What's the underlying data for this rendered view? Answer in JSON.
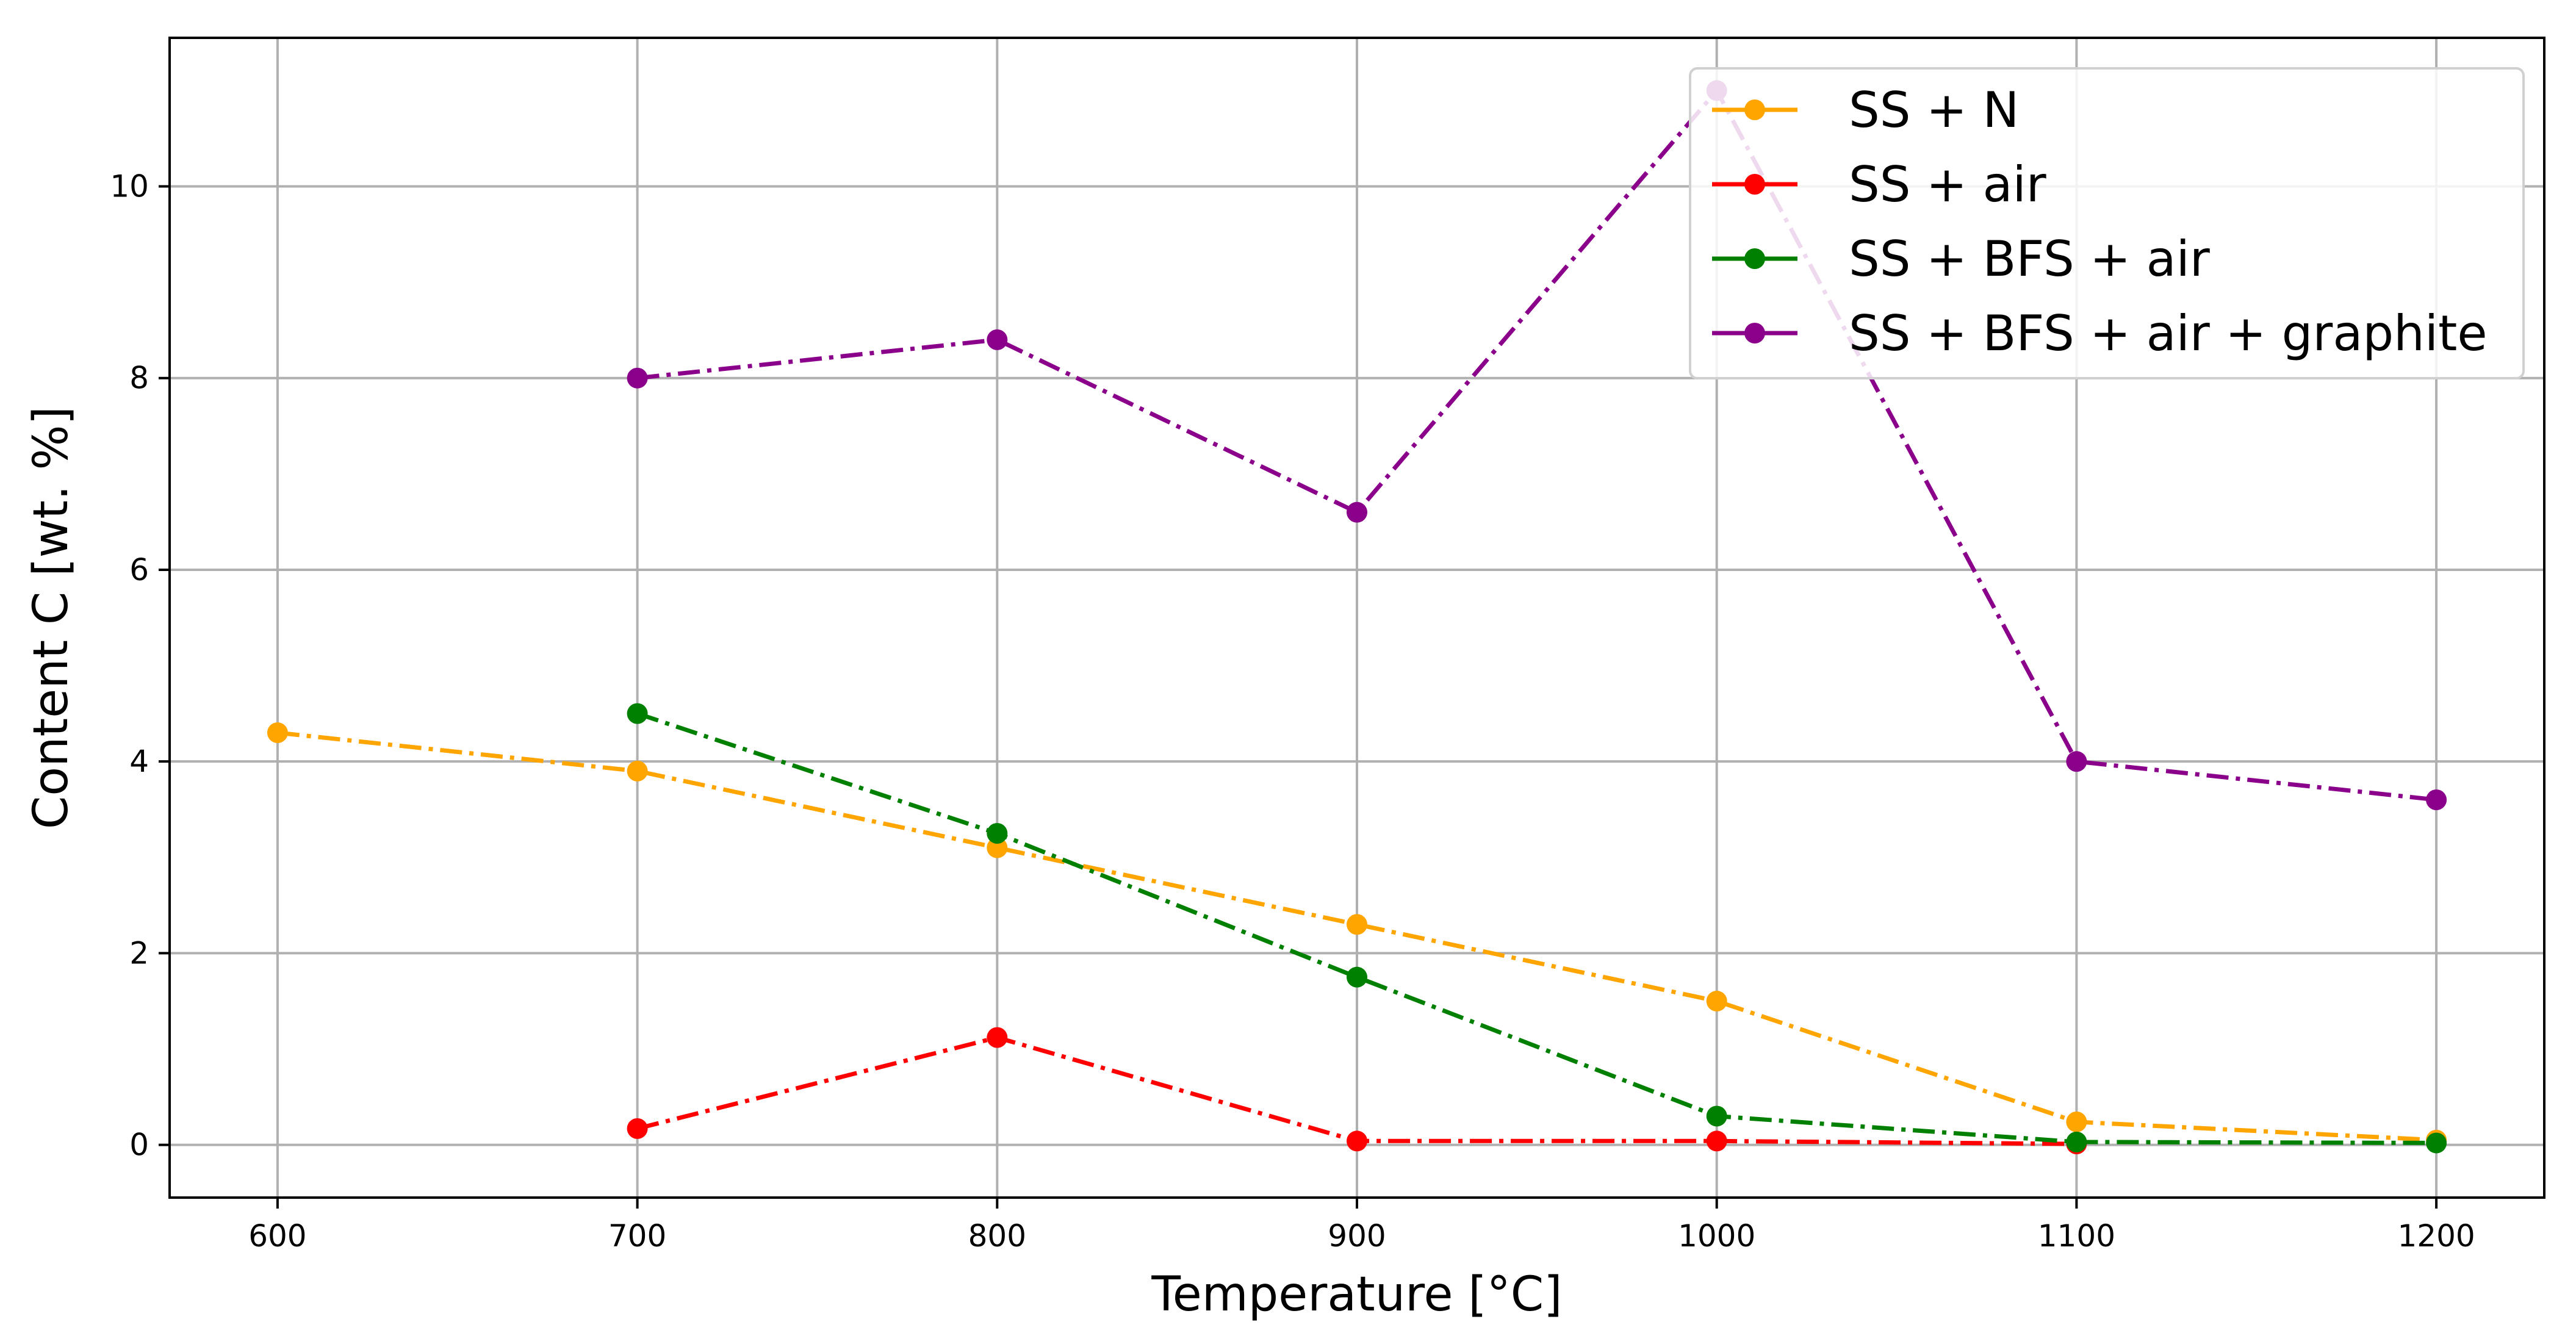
{
  "chart_data": {
    "type": "line",
    "title": "",
    "xlabel": "Temperature [°C]",
    "ylabel": "Content C [wt. %]",
    "xlim": [
      570,
      1230
    ],
    "ylim": [
      -0.55,
      11.55
    ],
    "xticks": [
      600,
      700,
      800,
      900,
      1000,
      1100,
      1200
    ],
    "yticks": [
      0,
      2,
      4,
      6,
      8,
      10
    ],
    "xtick_labels": [
      "600",
      "700",
      "800",
      "900",
      "1000",
      "1100",
      "1200"
    ],
    "ytick_labels": [
      "0",
      "2",
      "4",
      "6",
      "8",
      "10"
    ],
    "grid": true,
    "legend_position": "top-right",
    "series": [
      {
        "name": "SS + N",
        "color": "#FFA500",
        "linestyle": "dash-dot",
        "marker": "circle",
        "x": [
          600,
          700,
          800,
          900,
          1000,
          1100,
          1200
        ],
        "y": [
          4.3,
          3.9,
          3.1,
          2.3,
          1.5,
          0.24,
          0.05
        ]
      },
      {
        "name": "SS + air",
        "color": "#FF0000",
        "linestyle": "dash-dot",
        "marker": "circle",
        "x": [
          700,
          800,
          900,
          1000,
          1100
        ],
        "y": [
          0.17,
          1.12,
          0.04,
          0.04,
          0.01
        ]
      },
      {
        "name": "SS + BFS + air",
        "color": "#008000",
        "linestyle": "dash-dot",
        "marker": "circle",
        "x": [
          700,
          800,
          900,
          1000,
          1100,
          1200
        ],
        "y": [
          4.5,
          3.25,
          1.75,
          0.3,
          0.03,
          0.02
        ]
      },
      {
        "name": "SS + BFS + air + graphite",
        "color": "#8B008B",
        "linestyle": "dash-dot",
        "marker": "circle",
        "x": [
          700,
          800,
          900,
          1000,
          1100,
          1200
        ],
        "y": [
          8.0,
          8.4,
          6.6,
          11.0,
          4.0,
          3.6
        ]
      }
    ]
  }
}
